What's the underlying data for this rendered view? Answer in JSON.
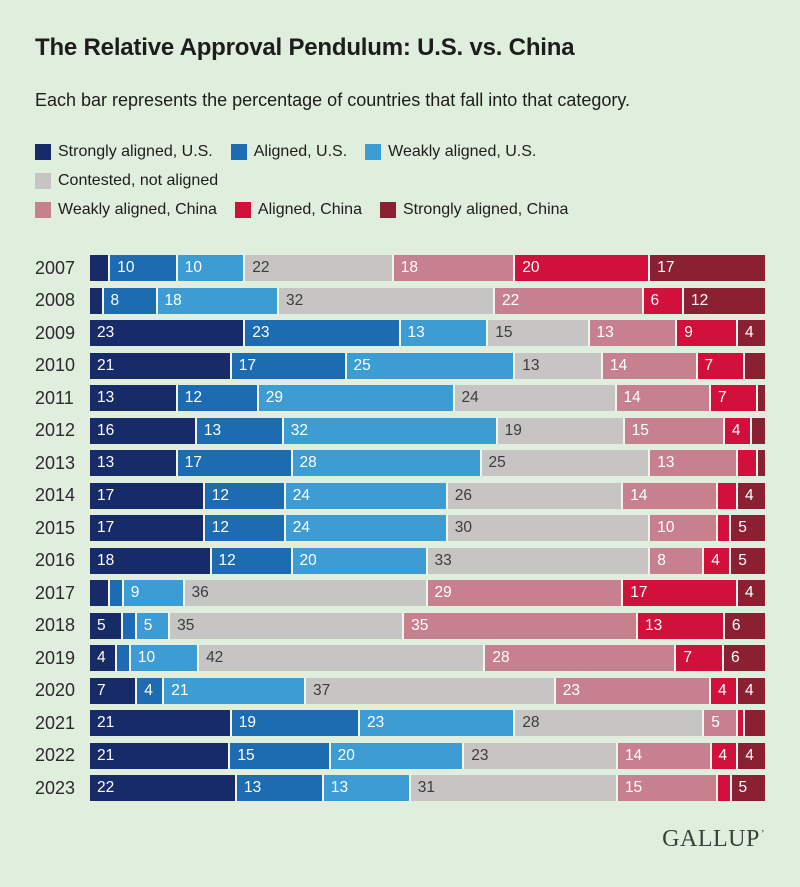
{
  "title": "The Relative Approval Pendulum: U.S. vs. China",
  "subtitle": "Each bar represents the percentage of countries that fall into that category.",
  "footer": {
    "brand": "GALLUP",
    "trademark": "’"
  },
  "colors": {
    "background": "#e0eedd",
    "text": "#1d1d1b",
    "segment_separator": "#f0f6ef"
  },
  "chart_data": {
    "type": "bar",
    "variant": "stacked-horizontal",
    "unit": "percent of countries",
    "legend_position": "top",
    "label_min_value": 4,
    "xlim": [
      0,
      100
    ],
    "categories": [
      "2007",
      "2008",
      "2009",
      "2010",
      "2011",
      "2012",
      "2013",
      "2014",
      "2015",
      "2016",
      "2017",
      "2018",
      "2019",
      "2020",
      "2021",
      "2022",
      "2023"
    ],
    "series": [
      {
        "name": "Strongly aligned, U.S.",
        "color": "#172b68",
        "label_color": "#ffffff",
        "values": [
          3,
          2,
          23,
          21,
          13,
          16,
          13,
          17,
          17,
          18,
          3,
          5,
          4,
          7,
          21,
          21,
          22
        ]
      },
      {
        "name": "Aligned, U.S.",
        "color": "#1d6cb2",
        "label_color": "#ffffff",
        "values": [
          10,
          8,
          23,
          17,
          12,
          13,
          17,
          12,
          12,
          12,
          2,
          2,
          2,
          4,
          19,
          15,
          13
        ]
      },
      {
        "name": "Weakly aligned, U.S.",
        "color": "#3d9cd4",
        "label_color": "#ffffff",
        "values": [
          10,
          18,
          13,
          25,
          29,
          32,
          28,
          24,
          24,
          20,
          9,
          5,
          10,
          21,
          23,
          20,
          13
        ]
      },
      {
        "name": "Contested, not aligned",
        "color": "#c6c5c4",
        "label_color": "#3c3c3c",
        "values": [
          22,
          32,
          15,
          13,
          24,
          19,
          25,
          26,
          30,
          33,
          36,
          35,
          42,
          37,
          28,
          23,
          31
        ]
      },
      {
        "name": "Weakly aligned, China",
        "color": "#c7808e",
        "label_color": "#ffffff",
        "values": [
          18,
          22,
          13,
          14,
          14,
          15,
          13,
          14,
          10,
          8,
          29,
          35,
          28,
          23,
          5,
          14,
          15
        ]
      },
      {
        "name": "Aligned, China",
        "color": "#d2103c",
        "label_color": "#ffffff",
        "values": [
          20,
          6,
          9,
          7,
          7,
          4,
          3,
          3,
          2,
          4,
          17,
          13,
          7,
          4,
          1,
          4,
          2
        ]
      },
      {
        "name": "Strongly aligned, China",
        "color": "#8b2033",
        "label_color": "#ffffff",
        "values": [
          17,
          12,
          4,
          3,
          1,
          2,
          1,
          4,
          5,
          5,
          4,
          6,
          6,
          4,
          3,
          4,
          5
        ]
      }
    ]
  }
}
